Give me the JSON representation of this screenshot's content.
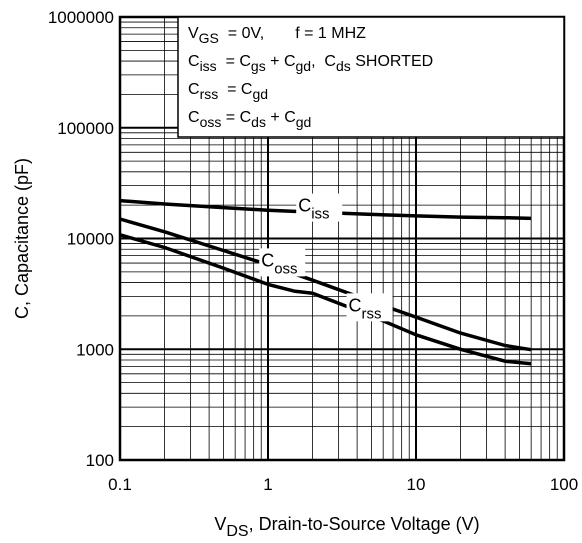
{
  "chart_data": {
    "type": "line",
    "x_scale": "log",
    "y_scale": "log",
    "xlim": [
      0.1,
      100
    ],
    "ylim": [
      100,
      1000000
    ],
    "grid": true,
    "x_ticks": [
      "0.1",
      "1",
      "10",
      "100"
    ],
    "y_ticks": [
      "100",
      "1000",
      "10000",
      "100000",
      "1000000"
    ],
    "xlabel": {
      "main": "V",
      "sub": "DS",
      "rest": ", Drain-to-Source Voltage (V)"
    },
    "ylabel": "C, Capacitance (pF)",
    "legend_box": [
      [
        {
          "t": "V"
        },
        {
          "t": "GS",
          "sub": true
        },
        {
          "t": "  = 0V,       f = 1 MHZ"
        }
      ],
      [
        {
          "t": "C"
        },
        {
          "t": "iss",
          "sub": true
        },
        {
          "t": "  = C"
        },
        {
          "t": "gs",
          "sub": true
        },
        {
          "t": " + C"
        },
        {
          "t": "gd",
          "sub": true
        },
        {
          "t": ",  C"
        },
        {
          "t": "ds",
          "sub": true
        },
        {
          "t": " SHORTED"
        }
      ],
      [
        {
          "t": "C"
        },
        {
          "t": "rss",
          "sub": true
        },
        {
          "t": "  = C"
        },
        {
          "t": "gd",
          "sub": true
        }
      ],
      [
        {
          "t": "C"
        },
        {
          "t": "oss",
          "sub": true
        },
        {
          "t": " = C"
        },
        {
          "t": "ds",
          "sub": true
        },
        {
          "t": " + C"
        },
        {
          "t": "gd",
          "sub": true
        }
      ]
    ],
    "series": [
      {
        "name": "Ciss",
        "label_main": "C",
        "label_sub": "iss",
        "label_at": [
          1.6,
          17500
        ],
        "x": [
          0.1,
          0.2,
          0.5,
          1,
          2,
          5,
          10,
          20,
          40,
          60
        ],
        "y": [
          22000,
          20500,
          19000,
          18000,
          17300,
          16500,
          16000,
          15600,
          15400,
          15200
        ]
      },
      {
        "name": "Coss",
        "label_main": "C",
        "label_sub": "oss",
        "label_at": [
          0.9,
          5600
        ],
        "x": [
          0.1,
          0.2,
          0.5,
          1,
          2,
          5,
          10,
          20,
          40,
          60
        ],
        "y": [
          15000,
          11500,
          7800,
          5800,
          4200,
          2700,
          1950,
          1400,
          1080,
          990
        ]
      },
      {
        "name": "Crss",
        "label_main": "C",
        "label_sub": "rss",
        "label_at": [
          3.5,
          2200
        ],
        "x": [
          0.1,
          0.2,
          0.5,
          1,
          1.5,
          2,
          5,
          10,
          20,
          40,
          60
        ],
        "y": [
          10800,
          8300,
          5400,
          3850,
          3350,
          3200,
          2000,
          1350,
          1000,
          780,
          740
        ]
      }
    ]
  }
}
